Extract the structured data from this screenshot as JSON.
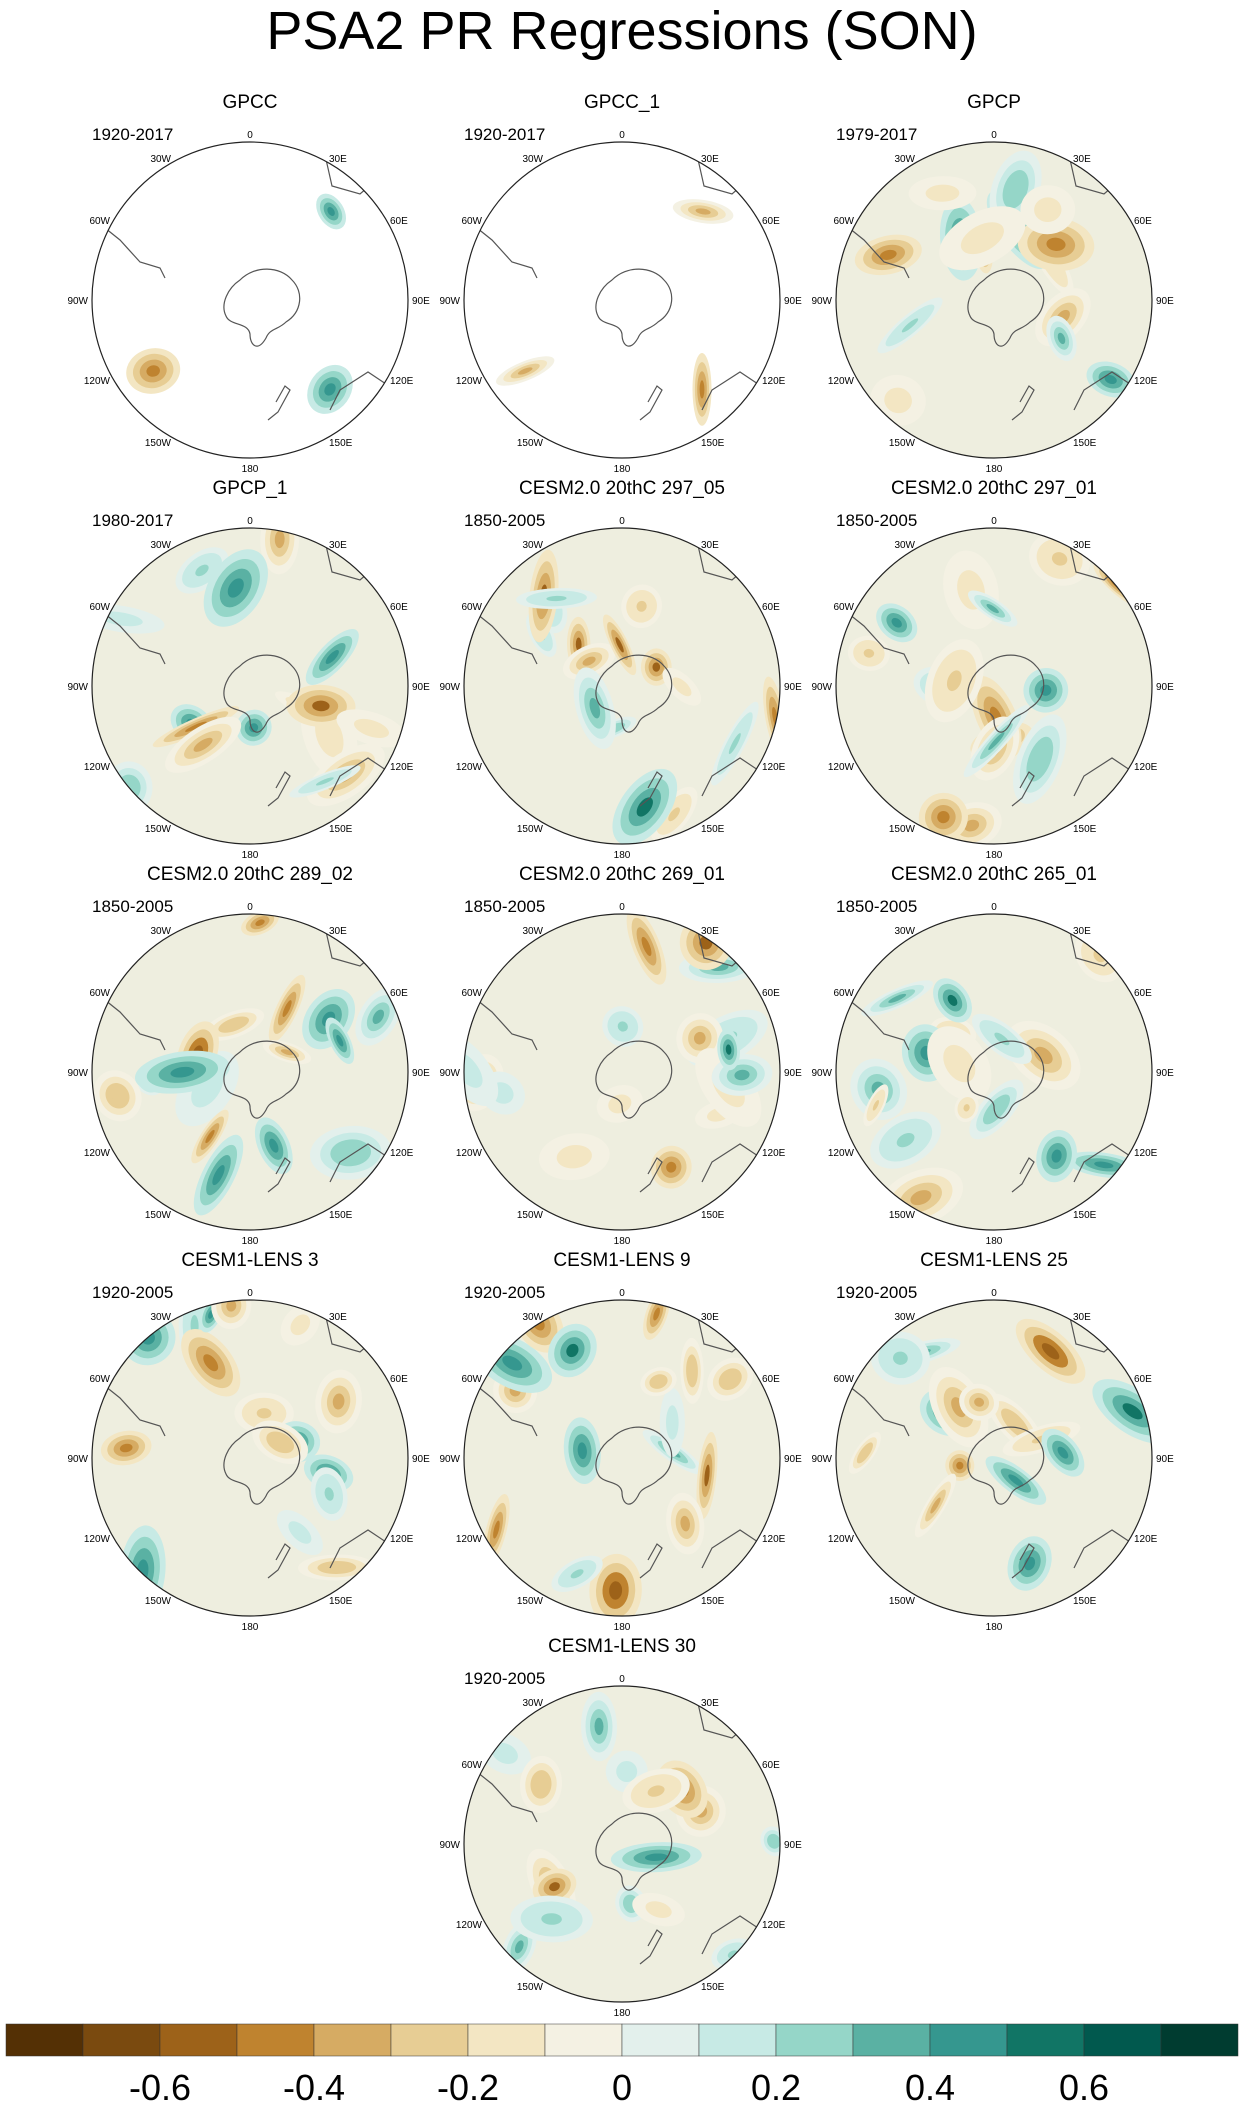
{
  "title": "PSA2 PR Regressions (SON)",
  "colors": {
    "ocean": "#eeeedf",
    "coast": "#555555",
    "palette": [
      "#543005",
      "#7a4a0f",
      "#9d6219",
      "#bf832f",
      "#d6ab63",
      "#e7cd94",
      "#f3e6c3",
      "#f4f1e3",
      "#e3f0ec",
      "#c7eae5",
      "#95d6c8",
      "#5ab1a3",
      "#35978f",
      "#117565",
      "#01594e",
      "#003c30"
    ]
  },
  "map_labels": {
    "top": "0",
    "bottom": "180",
    "left": "90W",
    "right": "90E",
    "upper_left": "60W",
    "upper_right": "60E",
    "top_left": "30W",
    "top_right": "30E",
    "lower_left": "120W",
    "lower_right": "120E",
    "bottom_left": "150W",
    "bottom_right": "150E"
  },
  "panels": [
    {
      "name": "GPCC",
      "period": "1920-2017",
      "type": "gauge",
      "seed": 3
    },
    {
      "name": "GPCC_1",
      "period": "1920-2017",
      "type": "gauge",
      "seed": 7
    },
    {
      "name": "GPCP",
      "period": "1979-2017",
      "type": "full",
      "seed": 11
    },
    {
      "name": "GPCP_1",
      "period": "1980-2017",
      "type": "full",
      "seed": 13
    },
    {
      "name": "CESM2.0 20thC 297_05",
      "period": "1850-2005",
      "type": "full",
      "seed": 17
    },
    {
      "name": "CESM2.0 20thC 297_01",
      "period": "1850-2005",
      "type": "full",
      "seed": 19
    },
    {
      "name": "CESM2.0 20thC 289_02",
      "period": "1850-2005",
      "type": "full",
      "seed": 23
    },
    {
      "name": "CESM2.0 20thC 269_01",
      "period": "1850-2005",
      "type": "full",
      "seed": 29
    },
    {
      "name": "CESM2.0 20thC 265_01",
      "period": "1850-2005",
      "type": "full",
      "seed": 31
    },
    {
      "name": "CESM1-LENS 3",
      "period": "1920-2005",
      "type": "full",
      "seed": 37
    },
    {
      "name": "CESM1-LENS 9",
      "period": "1920-2005",
      "type": "full",
      "seed": 41
    },
    {
      "name": "CESM1-LENS 25",
      "period": "1920-2005",
      "type": "full",
      "seed": 43
    },
    {
      "name": "CESM1-LENS 30",
      "period": "1920-2005",
      "type": "full",
      "seed": 47
    }
  ],
  "chart_data": {
    "type": "heatmap",
    "title": "PSA2 PR Regressions (SON)",
    "projection": "south polar stereographic",
    "colorbar": {
      "tick_labels": [
        "-0.6",
        "-0.4",
        "-0.2",
        "0",
        "0.2",
        "0.4",
        "0.6"
      ],
      "tick_values": [
        -0.6,
        -0.4,
        -0.2,
        0,
        0.2,
        0.4,
        0.6
      ],
      "levels": [
        -0.7,
        -0.6,
        -0.5,
        -0.4,
        -0.3,
        -0.2,
        -0.1,
        0,
        0.1,
        0.2,
        0.3,
        0.4,
        0.5,
        0.6,
        0.7
      ],
      "range": [
        -0.8,
        0.8
      ]
    }
  }
}
